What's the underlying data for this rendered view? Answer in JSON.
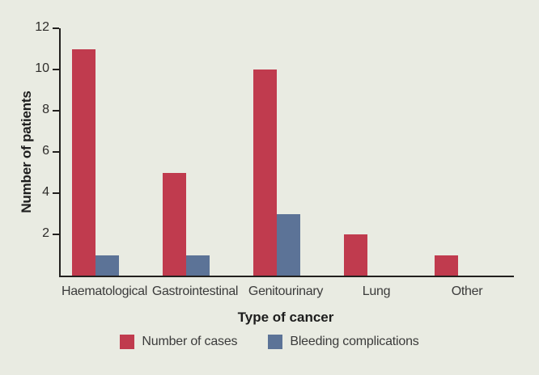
{
  "chart_data": {
    "type": "bar",
    "title": "",
    "categories": [
      "Haematological",
      "Gastrointestinal",
      "Genitourinary",
      "Lung",
      "Other"
    ],
    "series": [
      {
        "name": "Number of cases",
        "color": "#c03b4e",
        "values": [
          11,
          5,
          10,
          2,
          1
        ]
      },
      {
        "name": "Bleeding complications",
        "color": "#5c7397",
        "values": [
          1,
          1,
          3,
          0,
          0
        ]
      }
    ],
    "xlabel": "Type of cancer",
    "ylabel": "Number of patients",
    "ylim": [
      0,
      12
    ],
    "yticks": [
      2,
      4,
      6,
      8,
      10,
      12
    ],
    "grid": false,
    "legend_position": "bottom"
  },
  "colors": {
    "background": "#e9ebe2",
    "axis": "#22201e",
    "tick_text": "#2e2c2a",
    "label_text": "#3b3b3b",
    "title_text": "#1d1d1d"
  }
}
